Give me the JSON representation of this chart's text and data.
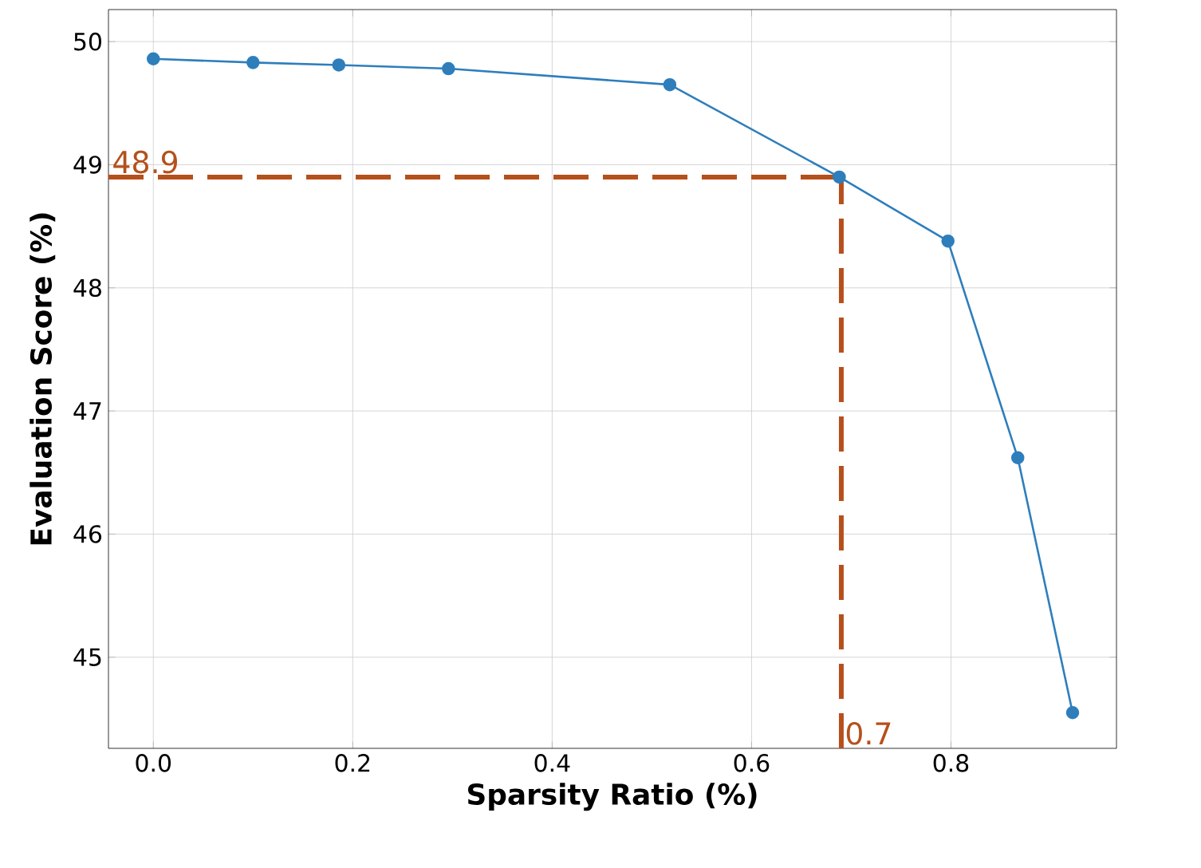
{
  "chart_data": {
    "type": "line",
    "xlabel": "Sparsity Ratio (%)",
    "ylabel": "Evaluation Score (%)",
    "x": [
      0.0,
      0.1,
      0.186,
      0.296,
      0.518,
      0.688,
      0.797,
      0.867,
      0.922
    ],
    "series": [
      {
        "color": "#2e7ebc",
        "values": [
          49.86,
          49.83,
          49.81,
          49.78,
          49.65,
          48.9,
          48.38,
          46.62,
          44.55
        ]
      }
    ],
    "xlim": [
      -0.045,
      0.966
    ],
    "ylim": [
      44.26,
      50.26
    ],
    "xticks": [
      {
        "value": 0.0,
        "label": "0.0"
      },
      0.2,
      0.4,
      0.6,
      0.8
    ],
    "yticks": [
      45,
      46,
      47,
      48,
      49,
      50
    ],
    "ref_lines": [
      {
        "axis": "y",
        "value": 48.9,
        "label": "48.9",
        "color": "#b5501b",
        "line_style": "dashed"
      },
      {
        "axis": "x",
        "value": 0.69,
        "label": "0.7",
        "color": "#b5501b",
        "line_style": "dashed"
      }
    ],
    "grid": true,
    "marker": "circle",
    "line_style": "solid"
  }
}
